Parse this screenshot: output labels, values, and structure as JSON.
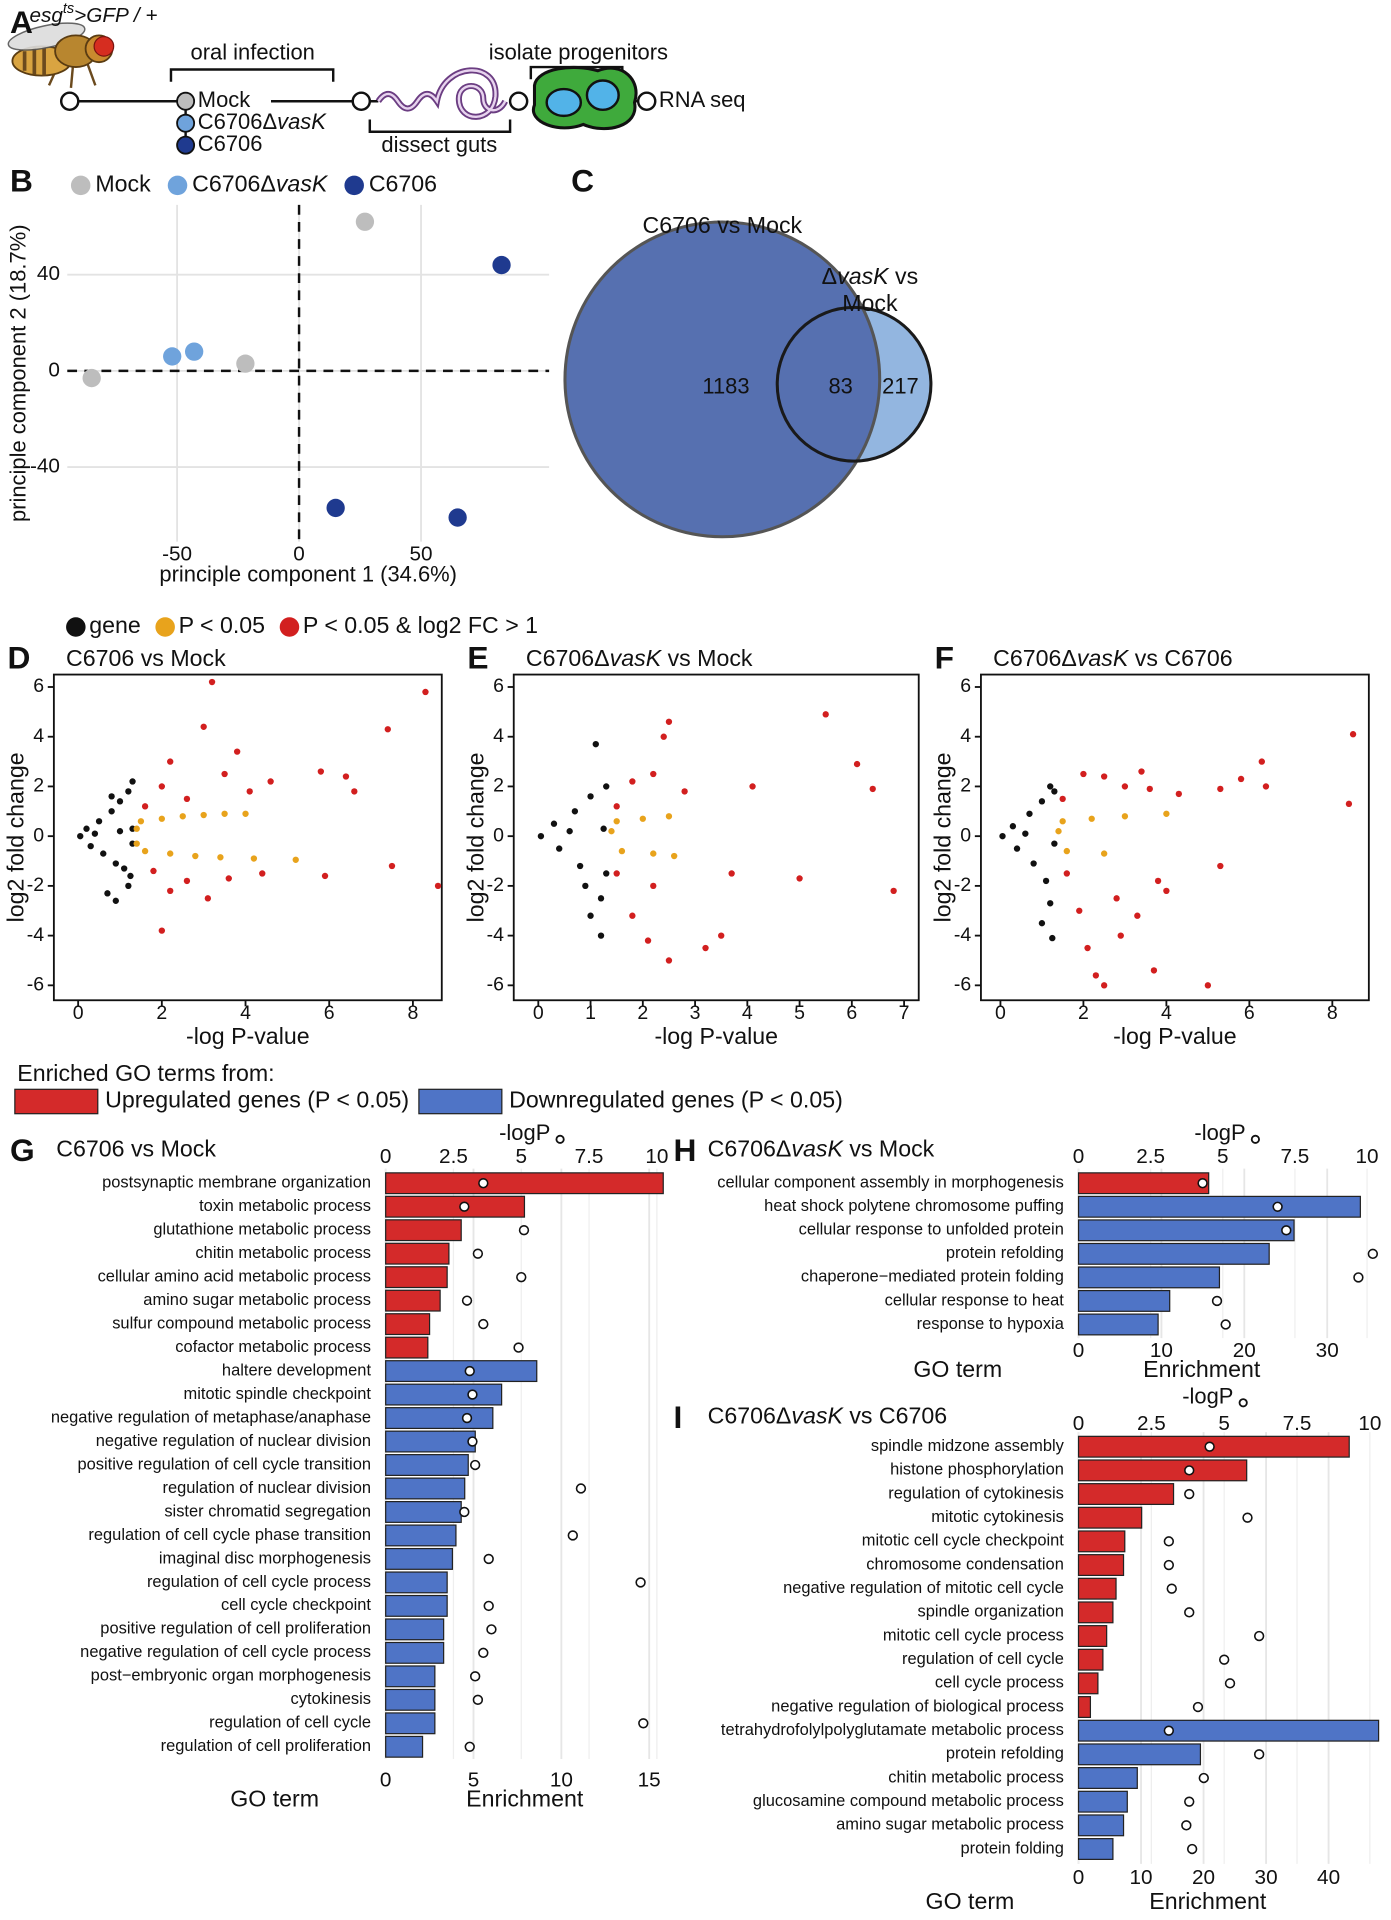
{
  "diagram": {
    "label": "A",
    "genotype": [
      {
        "text": "esg",
        "italic": true
      },
      {
        "text": "ts",
        "italic": true,
        "sup": true
      },
      {
        "text": ">GFP / +",
        "italic": true
      }
    ],
    "steps": {
      "infection": "oral infection",
      "dissection": "dissect guts",
      "isolation": "isolate progenitors",
      "sequencing": "RNA seq"
    },
    "conditions": [
      {
        "name": "Mock",
        "color": "#bdbdbd"
      },
      {
        "name": [
          {
            "text": "C6706Δ"
          },
          {
            "text": "vasK",
            "italic": true
          }
        ],
        "color": "#6fa3dc"
      },
      {
        "name": "C6706",
        "color": "#1f3a8f"
      }
    ]
  },
  "volcano_legend": {
    "items": [
      {
        "name": "gene",
        "color": "#111111"
      },
      {
        "name": "P < 0.05",
        "color": "#e8a31c"
      },
      {
        "name": "P < 0.05 & log2 FC > 1",
        "color": "#d21f1f"
      }
    ]
  },
  "go_legend": {
    "title": "Enriched GO terms from:",
    "items": [
      {
        "name": "Upregulated genes (P < 0.05)",
        "color": "#d42a2a"
      },
      {
        "name": "Downregulated genes (P < 0.05)",
        "color": "#4f74c6"
      }
    ]
  },
  "chart_data": [
    {
      "type": "scatter",
      "label": "B",
      "xlabel": "principle component 1 (34.6%)",
      "ylabel": "principle component 2 (18.7%)",
      "xlim": [
        -95,
        102.5
      ],
      "ylim": [
        -71,
        69
      ],
      "xticks": [
        -50,
        0,
        50
      ],
      "yticks": [
        -40,
        0,
        40
      ],
      "grid": true,
      "reference_lines": {
        "x": 0,
        "y": 0
      },
      "series": [
        {
          "name": "Mock",
          "color": "#bdbdbd",
          "x": [
            -85,
            -22,
            27
          ],
          "y": [
            -3,
            3,
            62
          ]
        },
        {
          "name": [
            {
              "text": "C6706Δ"
            },
            {
              "text": "vasK",
              "italic": true
            }
          ],
          "color": "#6fa3dc",
          "x": [
            -52,
            -43
          ],
          "y": [
            6,
            8
          ]
        },
        {
          "name": "C6706",
          "color": "#1f3a8f",
          "x": [
            83,
            15,
            65
          ],
          "y": [
            44,
            -57,
            -61
          ]
        }
      ]
    },
    {
      "type": "venn",
      "label": "C",
      "sets": [
        {
          "name": "C6706 vs Mock",
          "color": "#5670b0"
        },
        {
          "name": [
            {
              "text": "Δ"
            },
            {
              "text": "vasK",
              "italic": true
            },
            {
              "text": " vs"
            },
            {
              "text": "Mock",
              "break": true
            }
          ],
          "color": "#93b6e0"
        }
      ],
      "values": [
        1183,
        83,
        217
      ]
    },
    {
      "type": "volcano",
      "label": "D",
      "title": "C6706 vs Mock",
      "xlabel": "-log P-value",
      "ylabel": "log2 fold change",
      "xlim": [
        -0.58,
        8.69
      ],
      "ylim": [
        -6.6,
        6.5
      ],
      "xticks": [
        0,
        2,
        4,
        6,
        8
      ],
      "yticks": [
        -6,
        -4,
        -2,
        0,
        2,
        4,
        6
      ],
      "series": [
        {
          "color": "#111111",
          "x": [
            0.05,
            0.2,
            0.3,
            0.5,
            0.6,
            0.8,
            0.9,
            1.0,
            1.1,
            1.2,
            1.25,
            1.3,
            1.2,
            0.7,
            0.9,
            0.8,
            1.3,
            1.3,
            0.4,
            1.0
          ],
          "y": [
            0,
            0.3,
            -0.4,
            0.6,
            -0.7,
            1.0,
            -1.1,
            1.4,
            -1.3,
            1.8,
            -1.6,
            2.2,
            -2.0,
            -2.3,
            -2.6,
            1.6,
            0.3,
            -0.3,
            0.1,
            0.2
          ]
        },
        {
          "color": "#e8a31c",
          "x": [
            1.5,
            2,
            2.5,
            3,
            3.5,
            4,
            1.6,
            2.2,
            2.8,
            3.4,
            4.2,
            5.2,
            1.4,
            1.4
          ],
          "y": [
            0.6,
            0.7,
            0.8,
            0.85,
            0.9,
            0.9,
            -0.6,
            -0.7,
            -0.8,
            -0.85,
            -0.9,
            -0.95,
            0.3,
            -0.3
          ]
        },
        {
          "color": "#d21f1f",
          "x": [
            1.6,
            2,
            2.2,
            2.6,
            3,
            3.2,
            3.5,
            3.8,
            4.1,
            4.6,
            5.8,
            6.4,
            6.6,
            7.4,
            8.3,
            1.8,
            2.2,
            2.0,
            2.6,
            3.1,
            3.6,
            4.4,
            5.9,
            7.5,
            8.6
          ],
          "y": [
            1.2,
            2.0,
            3.0,
            1.5,
            4.4,
            6.2,
            2.5,
            3.4,
            1.8,
            2.2,
            2.6,
            2.4,
            1.8,
            4.3,
            5.8,
            -1.4,
            -2.2,
            -3.8,
            -1.8,
            -2.5,
            -1.7,
            -1.5,
            -1.6,
            -1.2,
            -2.0
          ]
        }
      ]
    },
    {
      "type": "volcano",
      "label": "E",
      "title": [
        {
          "text": "C6706Δ"
        },
        {
          "text": "vasK",
          "italic": true
        },
        {
          "text": " vs Mock"
        }
      ],
      "xlabel": "-log P-value",
      "ylabel": "log2 fold change",
      "xlim": [
        -0.47,
        7.28
      ],
      "ylim": [
        -6.6,
        6.5
      ],
      "xticks": [
        0,
        1,
        2,
        3,
        4,
        5,
        6,
        7
      ],
      "yticks": [
        -6,
        -4,
        -2,
        0,
        2,
        4,
        6
      ],
      "series": [
        {
          "color": "#111111",
          "x": [
            0.05,
            0.3,
            0.4,
            0.7,
            0.8,
            1.0,
            1.1,
            1.2,
            1.0,
            1.2,
            1.3,
            1.3,
            0.9,
            0.6,
            1.25
          ],
          "y": [
            0,
            0.5,
            -0.5,
            1.0,
            -1.2,
            1.6,
            3.7,
            -2.5,
            -3.2,
            -4.0,
            2.0,
            -1.5,
            -2.0,
            0.2,
            0.3
          ]
        },
        {
          "color": "#e8a31c",
          "x": [
            1.5,
            2.0,
            2.5,
            1.6,
            2.2,
            2.6,
            1.4
          ],
          "y": [
            0.6,
            0.7,
            0.8,
            -0.6,
            -0.7,
            -0.8,
            0.2
          ]
        },
        {
          "color": "#d21f1f",
          "x": [
            1.5,
            1.8,
            2.2,
            2.4,
            2.5,
            2.8,
            4.1,
            5.5,
            6.1,
            6.4,
            1.5,
            1.8,
            2.1,
            2.5,
            3.2,
            3.5,
            3.7,
            5,
            6.8,
            2.2
          ],
          "y": [
            1.2,
            2.2,
            2.5,
            4.0,
            4.6,
            1.8,
            2.0,
            4.9,
            2.9,
            1.9,
            -1.5,
            -3.2,
            -4.2,
            -5.0,
            -4.5,
            -4.0,
            -1.5,
            -1.7,
            -2.2,
            -2.0
          ]
        }
      ]
    },
    {
      "type": "volcano",
      "label": "F",
      "title": [
        {
          "text": "C6706Δ"
        },
        {
          "text": "vasK",
          "italic": true
        },
        {
          "text": " vs C6706"
        }
      ],
      "xlabel": "-log P-value",
      "ylabel": "log2 fold change",
      "xlim": [
        -0.47,
        8.88
      ],
      "ylim": [
        -6.6,
        6.5
      ],
      "xticks": [
        0,
        2,
        4,
        6,
        8
      ],
      "yticks": [
        -6,
        -4,
        -2,
        0,
        2,
        4,
        6
      ],
      "series": [
        {
          "color": "#111111",
          "x": [
            0.05,
            0.3,
            0.4,
            0.7,
            0.8,
            1.0,
            1.1,
            1.2,
            1.2,
            1.0,
            1.25,
            1.3,
            1.3,
            0.6
          ],
          "y": [
            0,
            0.4,
            -0.5,
            0.9,
            -1.1,
            1.4,
            -1.8,
            2.0,
            -2.7,
            -3.5,
            -4.1,
            1.8,
            -0.3,
            0.1
          ]
        },
        {
          "color": "#e8a31c",
          "x": [
            1.5,
            2.2,
            3,
            4,
            1.6,
            2.5,
            1.4
          ],
          "y": [
            0.6,
            0.7,
            0.8,
            0.9,
            -0.6,
            -0.7,
            0.2
          ]
        },
        {
          "color": "#d21f1f",
          "x": [
            1.5,
            2,
            2.5,
            3,
            3.4,
            3.6,
            4.3,
            5.3,
            5.8,
            6.3,
            6.4,
            8.5,
            8.4,
            1.6,
            1.9,
            2.1,
            2.3,
            2.5,
            2.9,
            3.3,
            3.7,
            3.8,
            4.0,
            5.0,
            5.3,
            2.8
          ],
          "y": [
            1.5,
            2.5,
            2.4,
            2.0,
            2.6,
            1.9,
            1.7,
            1.9,
            2.3,
            3.0,
            2.0,
            4.1,
            1.3,
            -1.5,
            -3.0,
            -4.5,
            -5.6,
            -6.0,
            -4.0,
            -3.2,
            -5.4,
            -1.8,
            -2.2,
            -6.0,
            -1.2,
            -2.5
          ]
        }
      ]
    },
    {
      "type": "go",
      "label": "G",
      "title": "C6706 vs Mock",
      "xlabel": "Enrichment",
      "x2label": "-logP",
      "ylabel": "GO term",
      "xlim": [
        0,
        15.9
      ],
      "xticks": [
        0,
        5,
        10,
        15
      ],
      "x2lim": [
        0,
        10.3
      ],
      "x2ticks": [
        0,
        2.5,
        5,
        7.5,
        10
      ],
      "grid": true,
      "categories": [
        "postsynaptic membrane organization",
        "toxin metabolic process",
        "glutathione metabolic process",
        "chitin metabolic process",
        "cellular amino acid metabolic process",
        "amino sugar metabolic process",
        "sulfur compound metabolic process",
        "cofactor metabolic process",
        "haltere development",
        "mitotic spindle checkpoint",
        "negative regulation of metaphase/anaphase",
        "negative regulation of nuclear division",
        "positive regulation of cell cycle transition",
        "regulation of nuclear division",
        "sister chromatid segregation",
        "regulation of cell cycle phase transition",
        "imaginal disc morphogenesis",
        "regulation of cell cycle process",
        "cell cycle checkpoint",
        "positive regulation of cell proliferation",
        "negative regulation of cell cycle process",
        "post−embryonic organ morphogenesis",
        "cytokinesis",
        "regulation of cell cycle",
        "regulation of cell proliferation"
      ],
      "values": [
        15.8,
        7.9,
        4.3,
        3.6,
        3.5,
        3.1,
        2.5,
        2.4,
        8.6,
        6.6,
        6.1,
        5.1,
        4.7,
        4.5,
        4.3,
        4.0,
        3.8,
        3.5,
        3.5,
        3.3,
        3.3,
        2.8,
        2.8,
        2.8,
        2.1
      ],
      "logp": [
        3.6,
        2.9,
        5.1,
        3.4,
        5.0,
        3.0,
        3.6,
        4.9,
        3.1,
        3.2,
        3.0,
        3.2,
        3.3,
        7.2,
        2.9,
        6.9,
        3.8,
        9.4,
        3.8,
        3.9,
        3.6,
        3.3,
        3.4,
        9.5,
        3.1
      ],
      "colors": [
        "#d42a2a",
        "#d42a2a",
        "#d42a2a",
        "#d42a2a",
        "#d42a2a",
        "#d42a2a",
        "#d42a2a",
        "#d42a2a",
        "#4f74c6",
        "#4f74c6",
        "#4f74c6",
        "#4f74c6",
        "#4f74c6",
        "#4f74c6",
        "#4f74c6",
        "#4f74c6",
        "#4f74c6",
        "#4f74c6",
        "#4f74c6",
        "#4f74c6",
        "#4f74c6",
        "#4f74c6",
        "#4f74c6",
        "#4f74c6",
        "#4f74c6"
      ]
    },
    {
      "type": "go",
      "label": "H",
      "title": [
        {
          "text": "C6706Δ"
        },
        {
          "text": "vasK",
          "italic": true
        },
        {
          "text": " vs Mock"
        }
      ],
      "xlabel": "Enrichment",
      "x2label": "-logP",
      "ylabel": "GO term",
      "xlim": [
        0,
        36.2
      ],
      "xticks": [
        0,
        10,
        20,
        30
      ],
      "x2lim": [
        0,
        10.4
      ],
      "x2ticks": [
        0,
        2.5,
        5,
        7.5,
        10
      ],
      "grid": true,
      "categories": [
        "cellular component assembly in morphogenesis",
        "heat shock polytene chromosome puffing",
        "cellular response to unfolded protein",
        "protein refolding",
        "chaperone−mediated protein folding",
        "cellular response to heat",
        "response to hypoxia"
      ],
      "values": [
        15.7,
        34,
        26,
        23,
        17,
        11,
        9.6
      ],
      "logp": [
        4.3,
        6.9,
        7.2,
        10.2,
        9.7,
        4.8,
        5.1
      ],
      "colors": [
        "#d42a2a",
        "#4f74c6",
        "#4f74c6",
        "#4f74c6",
        "#4f74c6",
        "#4f74c6",
        "#4f74c6"
      ]
    },
    {
      "type": "go",
      "label": "I",
      "title": [
        {
          "text": "C6706Δ"
        },
        {
          "text": "vasK",
          "italic": true
        },
        {
          "text": " vs C6706"
        }
      ],
      "xlabel": "Enrichment",
      "x2label": "-logP",
      "ylabel": "GO term",
      "xlim": [
        0,
        48
      ],
      "xticks": [
        0,
        10,
        20,
        30,
        40
      ],
      "x2lim": [
        0,
        10.3
      ],
      "x2ticks": [
        0,
        2.5,
        5,
        7.5,
        10
      ],
      "grid": true,
      "categories": [
        "spindle midzone assembly",
        "histone phosphorylation",
        "regulation of cytokinesis",
        "mitotic cytokinesis",
        "mitotic cell cycle checkpoint",
        "chromosome condensation",
        "negative regulation of mitotic cell cycle",
        "spindle organization",
        "mitotic cell cycle process",
        "regulation of cell cycle",
        "cell cycle process",
        "negative regulation of biological process",
        "tetrahydrofolylpolyglutamate metabolic process",
        "protein refolding",
        "chitin metabolic process",
        "glucosamine compound metabolic process",
        "amino sugar metabolic process",
        "protein folding"
      ],
      "values": [
        43.3,
        26.9,
        15.2,
        10.1,
        7.4,
        7.2,
        6.0,
        5.5,
        4.5,
        3.9,
        3.1,
        1.9,
        48,
        19.5,
        9.4,
        7.8,
        7.2,
        5.5
      ],
      "logp": [
        4.5,
        3.8,
        3.8,
        5.8,
        3.1,
        3.1,
        3.2,
        3.8,
        6.2,
        5.0,
        5.2,
        4.1,
        3.1,
        6.2,
        4.3,
        3.8,
        3.7,
        3.9
      ],
      "colors": [
        "#d42a2a",
        "#d42a2a",
        "#d42a2a",
        "#d42a2a",
        "#d42a2a",
        "#d42a2a",
        "#d42a2a",
        "#d42a2a",
        "#d42a2a",
        "#d42a2a",
        "#d42a2a",
        "#d42a2a",
        "#4f74c6",
        "#4f74c6",
        "#4f74c6",
        "#4f74c6",
        "#4f74c6",
        "#4f74c6"
      ]
    }
  ]
}
